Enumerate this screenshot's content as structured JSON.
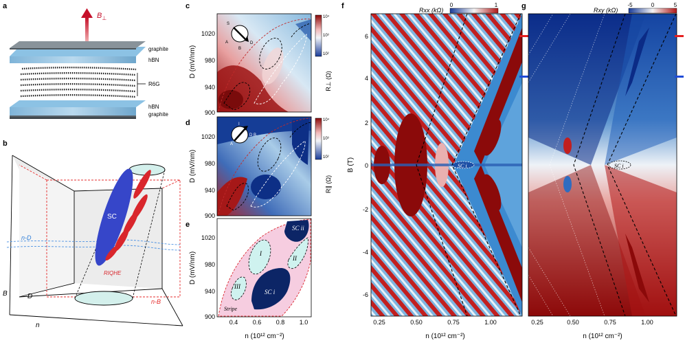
{
  "panel_labels": [
    "a",
    "b",
    "c",
    "d",
    "e",
    "f",
    "g"
  ],
  "panel_a": {
    "field_label": "B",
    "field_sub": "⊥",
    "layers": [
      "graphite",
      "hBN",
      "R6G",
      "hBN",
      "graphite"
    ]
  },
  "panel_b": {
    "axis_B": "B",
    "axis_D": "D",
    "axis_n": "n",
    "sc": "SC",
    "riqhe": "RIQHE",
    "nd": "n-D",
    "nb": "n-B"
  },
  "contacts": {
    "S": "S",
    "A": "A",
    "B": "B",
    "D": "D",
    "I": "I"
  },
  "panel_c": {
    "ylabel": "D (mV/nm)",
    "cbar_label": "R⊥ (Ω)"
  },
  "panel_d": {
    "ylabel": "D (mV/nm)",
    "cbar_label": "R∥ (Ω)"
  },
  "panel_e": {
    "ylabel": "D (mV/nm)",
    "regions": [
      "SC ii",
      "I",
      "II",
      "III",
      "SC i",
      "Stripe"
    ]
  },
  "panel_f": {
    "cbar_label": "Rxx (kΩ)",
    "ylabel": "B (T)",
    "sci_label": "SC i",
    "cbar_ticks": [
      "0",
      "1"
    ]
  },
  "panel_g": {
    "cbar_label": "Rxy (kΩ)",
    "sci_label": "SC i",
    "cbar_ticks": [
      "-5",
      "0",
      "5"
    ]
  },
  "axes": {
    "D_ticks": [
      "1020",
      "980",
      "940",
      "900"
    ],
    "n_ticks_ce": [
      "0.4",
      "0.6",
      "0.8",
      "1.0"
    ],
    "n_ticks_fg": [
      "0.25",
      "0.50",
      "0.75",
      "1.00"
    ],
    "B_ticks": [
      "6",
      "4",
      "2",
      "0",
      "-2",
      "-4",
      "-6"
    ],
    "cbar_log_ticks": [
      "10⁴",
      "10³",
      "10²"
    ],
    "xlabel": "n (10¹² cm⁻²)"
  },
  "colors": {
    "hot": "#8b0a0a",
    "cold": "#0a2a78",
    "pink": "#f6cde0",
    "scblue": "#0c2566"
  }
}
